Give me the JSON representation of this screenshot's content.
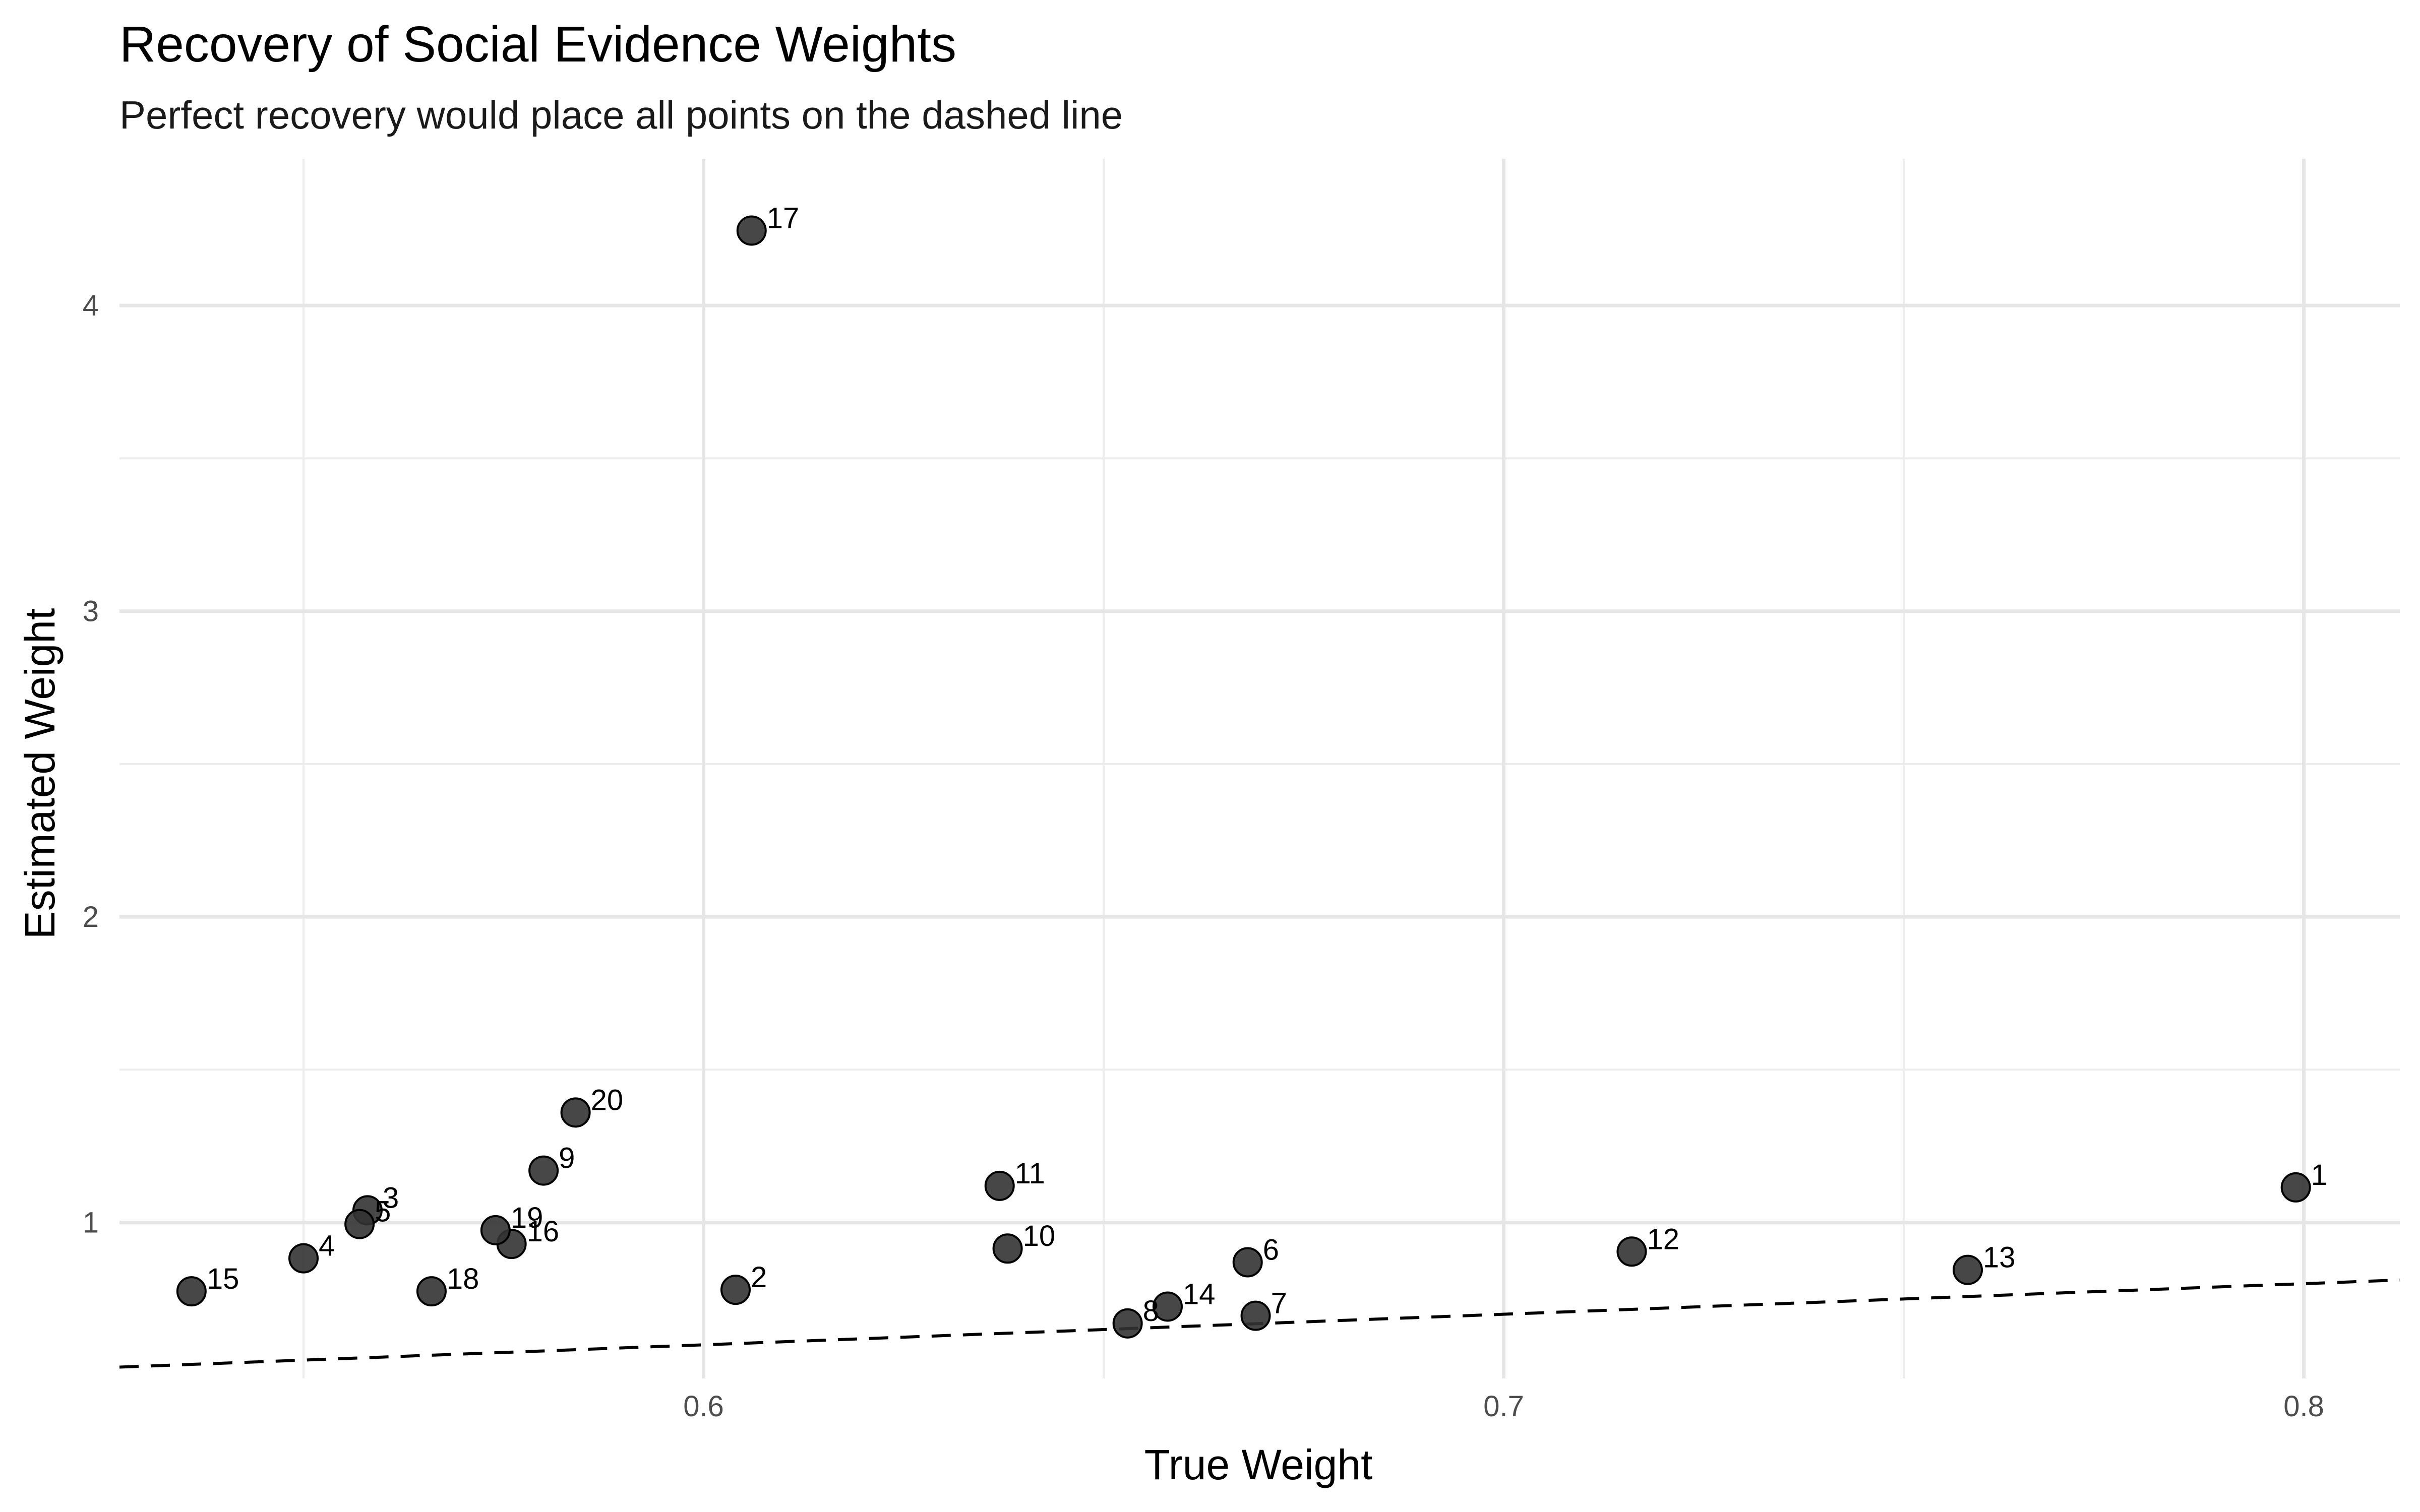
{
  "chart_data": {
    "type": "scatter",
    "title": "Recovery of Social Evidence Weights",
    "subtitle": "Perfect recovery would place all points on the dashed line",
    "xlabel": "True Weight",
    "ylabel": "Estimated Weight",
    "xlim": [
      0.527,
      0.812
    ],
    "ylim": [
      0.49,
      4.48
    ],
    "x_ticks": [
      0.6,
      0.7,
      0.8
    ],
    "x_tick_labels": [
      "0.6",
      "0.7",
      "0.8"
    ],
    "x_minor_ticks": [
      0.55,
      0.65,
      0.75
    ],
    "y_ticks": [
      1,
      2,
      3,
      4
    ],
    "y_tick_labels": [
      "1",
      "2",
      "3",
      "4"
    ],
    "y_minor_ticks": [
      1.5,
      2.5,
      3.5
    ],
    "grid": true,
    "reference_line": {
      "style": "dashed",
      "slope": 1,
      "intercept": 0
    },
    "marker_color": "#333333",
    "points": [
      {
        "label": "1",
        "x": 0.799,
        "y": 1.115
      },
      {
        "label": "2",
        "x": 0.604,
        "y": 0.78
      },
      {
        "label": "3",
        "x": 0.558,
        "y": 1.04
      },
      {
        "label": "4",
        "x": 0.55,
        "y": 0.883
      },
      {
        "label": "5",
        "x": 0.557,
        "y": 0.995
      },
      {
        "label": "6",
        "x": 0.668,
        "y": 0.87
      },
      {
        "label": "7",
        "x": 0.669,
        "y": 0.695
      },
      {
        "label": "8",
        "x": 0.653,
        "y": 0.67
      },
      {
        "label": "9",
        "x": 0.58,
        "y": 1.17
      },
      {
        "label": "10",
        "x": 0.638,
        "y": 0.915
      },
      {
        "label": "11",
        "x": 0.637,
        "y": 1.12
      },
      {
        "label": "12",
        "x": 0.716,
        "y": 0.905
      },
      {
        "label": "13",
        "x": 0.758,
        "y": 0.845
      },
      {
        "label": "14",
        "x": 0.658,
        "y": 0.725
      },
      {
        "label": "15",
        "x": 0.536,
        "y": 0.775
      },
      {
        "label": "16",
        "x": 0.576,
        "y": 0.93
      },
      {
        "label": "17",
        "x": 0.606,
        "y": 4.245
      },
      {
        "label": "18",
        "x": 0.566,
        "y": 0.775
      },
      {
        "label": "19",
        "x": 0.574,
        "y": 0.975
      },
      {
        "label": "20",
        "x": 0.584,
        "y": 1.36
      }
    ]
  }
}
